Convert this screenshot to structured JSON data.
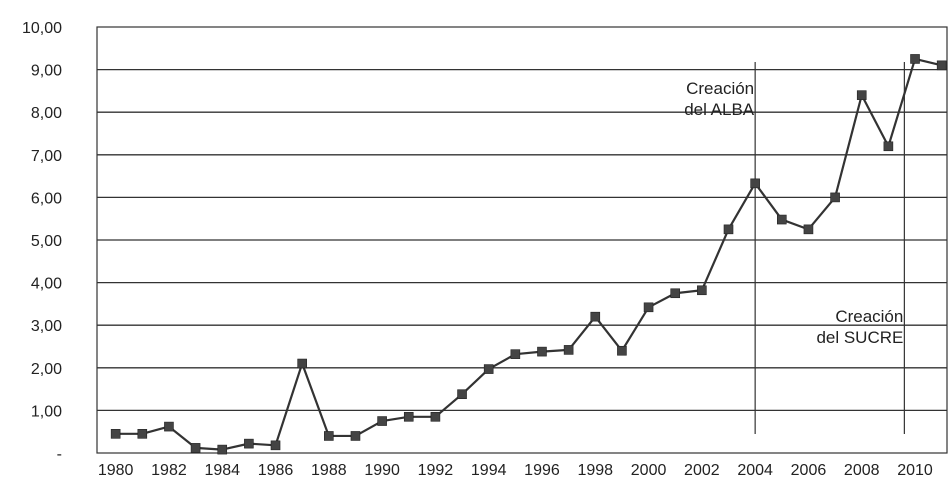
{
  "chart_data": {
    "type": "line",
    "title": "",
    "xlabel": "",
    "ylabel": "",
    "x": [
      1980,
      1981,
      1982,
      1983,
      1984,
      1985,
      1986,
      1987,
      1988,
      1989,
      1990,
      1991,
      1992,
      1993,
      1994,
      1995,
      1996,
      1997,
      1998,
      1999,
      2000,
      2001,
      2002,
      2003,
      2004,
      2005,
      2006,
      2007,
      2008,
      2009,
      2010,
      2011
    ],
    "series": [
      {
        "values": [
          0.45,
          0.45,
          0.62,
          0.12,
          0.08,
          0.22,
          0.18,
          2.1,
          0.4,
          0.4,
          0.75,
          0.85,
          0.85,
          1.38,
          1.97,
          2.32,
          2.38,
          2.42,
          3.2,
          2.4,
          3.42,
          3.75,
          3.82,
          5.25,
          6.33,
          5.48,
          5.25,
          6.0,
          8.4,
          7.2,
          9.25,
          9.1
        ],
        "color": "#333333"
      }
    ],
    "xticks": [
      "1980",
      "1982",
      "1984",
      "1986",
      "1988",
      "1990",
      "1992",
      "1994",
      "1996",
      "1998",
      "2000",
      "2002",
      "2004",
      "2006",
      "2008",
      "2010"
    ],
    "yticks": [
      "-",
      "1,00",
      "2,00",
      "3,00",
      "4,00",
      "5,00",
      "6,00",
      "7,00",
      "8,00",
      "9,00",
      "10,00"
    ],
    "ylim": [
      0,
      10
    ],
    "xlim": [
      1979.3,
      2011.2
    ],
    "grid": "horizontal",
    "legend": "none",
    "annotations": [
      {
        "x": 2004,
        "lines": [
          "Creación",
          "del ALBA"
        ]
      },
      {
        "x": 2009.6,
        "lines": [
          "Creación",
          "del SUCRE"
        ]
      }
    ]
  }
}
